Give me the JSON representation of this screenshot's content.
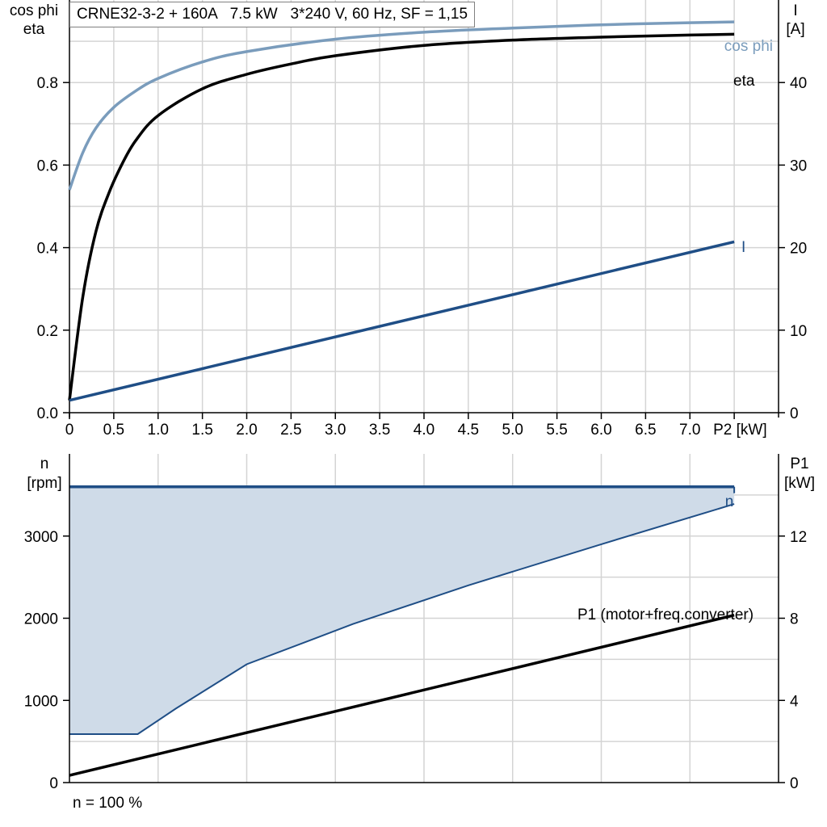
{
  "chart_data": [
    {
      "type": "line",
      "title": "CRNE32-3-2 + 160A   7.5 kW   3*240 V, 60 Hz, SF = 1,15",
      "ylabel_left": [
        "cos phi",
        "eta"
      ],
      "ylabel_right": [
        "I",
        "[A]"
      ],
      "xlabel": "P2 [kW]",
      "xlim": [
        0,
        8.0
      ],
      "ylim_left": [
        0,
        1.0
      ],
      "ylim_right": [
        0,
        50
      ],
      "x_ticks": [
        "0",
        "0.5",
        "1.0",
        "1.5",
        "2.0",
        "2.5",
        "3.0",
        "3.5",
        "4.0",
        "4.5",
        "5.0",
        "5.5",
        "6.0",
        "6.5",
        "7.0",
        "P2 [kW]"
      ],
      "y_ticks_left": [
        "0.0",
        "0.2",
        "0.4",
        "0.6",
        "0.8"
      ],
      "y_ticks_right": [
        "0",
        "10",
        "20",
        "30",
        "40"
      ],
      "grid": true,
      "series": [
        {
          "name": "cos phi",
          "axis": "left",
          "color": "#7a9cbc",
          "x": [
            0,
            0.15,
            0.3,
            0.5,
            0.75,
            1.0,
            1.5,
            2.0,
            3.0,
            4.0,
            5.0,
            6.0,
            7.0,
            7.5
          ],
          "y": [
            0.54,
            0.63,
            0.69,
            0.74,
            0.78,
            0.81,
            0.85,
            0.875,
            0.905,
            0.922,
            0.932,
            0.94,
            0.945,
            0.947
          ]
        },
        {
          "name": "eta",
          "axis": "left",
          "color": "#000000",
          "x": [
            0,
            0.15,
            0.3,
            0.45,
            0.6,
            0.75,
            1.0,
            1.5,
            2.0,
            2.5,
            3.0,
            4.0,
            5.0,
            6.0,
            7.0,
            7.5
          ],
          "y": [
            0.03,
            0.28,
            0.44,
            0.535,
            0.605,
            0.66,
            0.72,
            0.785,
            0.82,
            0.845,
            0.865,
            0.89,
            0.903,
            0.91,
            0.915,
            0.917
          ]
        },
        {
          "name": "I",
          "axis": "right",
          "color": "#1f4e86",
          "x": [
            0,
            7.5
          ],
          "y": [
            1.5,
            20.7
          ]
        }
      ]
    },
    {
      "type": "area",
      "ylabel_left": [
        "n",
        "[rpm]"
      ],
      "ylabel_right": [
        "P1",
        "[kW]"
      ],
      "xlim": [
        0,
        8.0
      ],
      "ylim_left": [
        0,
        4000
      ],
      "ylim_right": [
        0,
        16
      ],
      "y_ticks_left": [
        "0",
        "1000",
        "2000",
        "3000"
      ],
      "y_ticks_right": [
        "0",
        "4",
        "8",
        "12"
      ],
      "grid": true,
      "series": [
        {
          "name": "n",
          "axis": "left",
          "color": "#1f4e86",
          "fill": "#cfdbe8",
          "x_upper": [
            0,
            7.5
          ],
          "y_upper": [
            3600,
            3600
          ],
          "x_lower": [
            0,
            0.77,
            1.2,
            2.0,
            3.2,
            4.5,
            6.0,
            7.5
          ],
          "y_lower": [
            590,
            590,
            900,
            1440,
            1930,
            2400,
            2900,
            3390
          ]
        },
        {
          "name": "P1 (motor+freq.converter)",
          "axis": "right",
          "color": "#000000",
          "x": [
            0,
            7.5
          ],
          "y": [
            0.35,
            8.15
          ]
        }
      ]
    }
  ],
  "footer": "n = 100 %"
}
